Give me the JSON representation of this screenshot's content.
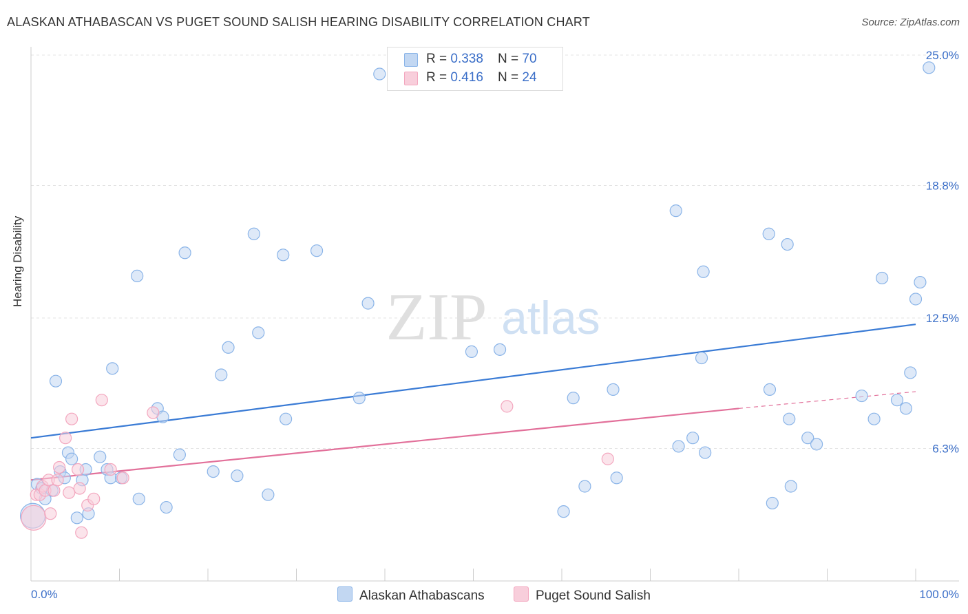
{
  "title": "ALASKAN ATHABASCAN VS PUGET SOUND SALISH HEARING DISABILITY CORRELATION CHART",
  "source": "Source: ZipAtlas.com",
  "watermark": {
    "zip": "ZIP",
    "atlas": "atlas"
  },
  "legend": {
    "series1": {
      "r_label": "R = ",
      "r_value": "0.338",
      "n_label": "N = ",
      "n_value": "70"
    },
    "series2": {
      "r_label": "R = ",
      "r_value": "0.416",
      "n_label": "N = ",
      "n_value": "24"
    }
  },
  "chart_data": {
    "type": "scatter",
    "title": "ALASKAN ATHABASCAN VS PUGET SOUND SALISH HEARING DISABILITY CORRELATION CHART",
    "xlabel": "",
    "ylabel": "Hearing Disability",
    "xlim": [
      0,
      100
    ],
    "ylim": [
      0,
      25
    ],
    "x_tick_labels": [
      "0.0%",
      "100.0%"
    ],
    "y_tick_labels": [
      "6.3%",
      "12.5%",
      "18.8%",
      "25.0%"
    ],
    "y_ticks": [
      6.3,
      12.5,
      18.8,
      25.0
    ],
    "grid": true,
    "legend_position": "top-center",
    "series": [
      {
        "name": "Alaskan Athabascans",
        "color": "#8ab4e8",
        "trend_color": "#3a7bd5",
        "trend": {
          "x0": 0,
          "y0": 6.8,
          "x1": 100,
          "y1": 12.2
        },
        "points": [
          [
            0.7,
            4.6
          ],
          [
            1.2,
            4.4
          ],
          [
            1.6,
            3.9
          ],
          [
            2.4,
            4.3
          ],
          [
            2.8,
            9.5
          ],
          [
            3.3,
            5.2
          ],
          [
            3.8,
            4.9
          ],
          [
            4.2,
            6.1
          ],
          [
            4.6,
            5.8
          ],
          [
            5.2,
            3.0
          ],
          [
            5.8,
            4.8
          ],
          [
            6.2,
            5.3
          ],
          [
            6.5,
            3.2
          ],
          [
            7.8,
            5.9
          ],
          [
            8.6,
            5.3
          ],
          [
            9.0,
            4.9
          ],
          [
            9.2,
            10.1
          ],
          [
            10.2,
            4.9
          ],
          [
            12.0,
            14.5
          ],
          [
            12.2,
            3.9
          ],
          [
            14.3,
            8.2
          ],
          [
            14.9,
            7.8
          ],
          [
            15.3,
            3.5
          ],
          [
            16.8,
            6.0
          ],
          [
            17.4,
            15.6
          ],
          [
            20.6,
            5.2
          ],
          [
            21.5,
            9.8
          ],
          [
            22.3,
            11.1
          ],
          [
            23.3,
            5.0
          ],
          [
            25.2,
            16.5
          ],
          [
            25.7,
            11.8
          ],
          [
            26.8,
            4.1
          ],
          [
            28.5,
            15.5
          ],
          [
            28.8,
            7.7
          ],
          [
            32.3,
            15.7
          ],
          [
            37.1,
            8.7
          ],
          [
            38.1,
            13.2
          ],
          [
            39.4,
            24.1
          ],
          [
            41.2,
            24.9
          ],
          [
            49.8,
            10.9
          ],
          [
            53.0,
            11.0
          ],
          [
            60.2,
            3.3
          ],
          [
            61.3,
            8.7
          ],
          [
            62.6,
            4.5
          ],
          [
            65.8,
            9.1
          ],
          [
            66.2,
            4.9
          ],
          [
            72.9,
            17.6
          ],
          [
            73.2,
            6.4
          ],
          [
            74.8,
            6.8
          ],
          [
            75.8,
            10.6
          ],
          [
            76.0,
            14.7
          ],
          [
            76.2,
            6.1
          ],
          [
            83.4,
            16.5
          ],
          [
            83.5,
            9.1
          ],
          [
            83.8,
            3.7
          ],
          [
            85.5,
            16.0
          ],
          [
            85.7,
            7.7
          ],
          [
            85.9,
            4.5
          ],
          [
            87.8,
            6.8
          ],
          [
            88.8,
            6.5
          ],
          [
            93.9,
            8.8
          ],
          [
            95.3,
            7.7
          ],
          [
            96.2,
            14.4
          ],
          [
            97.9,
            8.6
          ],
          [
            98.9,
            8.2
          ],
          [
            99.4,
            9.9
          ],
          [
            100.5,
            14.2
          ],
          [
            100.0,
            13.4
          ],
          [
            101.5,
            24.4
          ],
          [
            0.2,
            3.1
          ]
        ]
      },
      {
        "name": "Puget Sound Salish",
        "color": "#f3a6be",
        "trend_color": "#e2709a",
        "trend": {
          "x0": 0,
          "y0": 4.8,
          "x1": 80,
          "y1": 8.2
        },
        "trend_dashed": {
          "x0": 80,
          "y0": 8.2,
          "x1": 100,
          "y1": 9.0
        },
        "points": [
          [
            0.3,
            3.0
          ],
          [
            0.6,
            4.1
          ],
          [
            1.0,
            4.1
          ],
          [
            1.3,
            4.5
          ],
          [
            1.6,
            4.3
          ],
          [
            2.0,
            4.8
          ],
          [
            2.2,
            3.2
          ],
          [
            2.6,
            4.3
          ],
          [
            3.0,
            4.8
          ],
          [
            3.2,
            5.4
          ],
          [
            3.9,
            6.8
          ],
          [
            4.3,
            4.2
          ],
          [
            4.6,
            7.7
          ],
          [
            5.3,
            5.3
          ],
          [
            5.5,
            4.4
          ],
          [
            5.7,
            2.3
          ],
          [
            6.4,
            3.6
          ],
          [
            7.1,
            3.9
          ],
          [
            8.0,
            8.6
          ],
          [
            9.0,
            5.3
          ],
          [
            10.4,
            4.9
          ],
          [
            13.8,
            8.0
          ],
          [
            53.8,
            8.3
          ],
          [
            65.2,
            5.8
          ]
        ]
      }
    ]
  },
  "colors": {
    "blue_fill": "#c2d7f2",
    "blue_stroke": "#8ab4e8",
    "pink_fill": "#f8cedb",
    "pink_stroke": "#f3a6be",
    "axis_text": "#3a6ec8"
  }
}
